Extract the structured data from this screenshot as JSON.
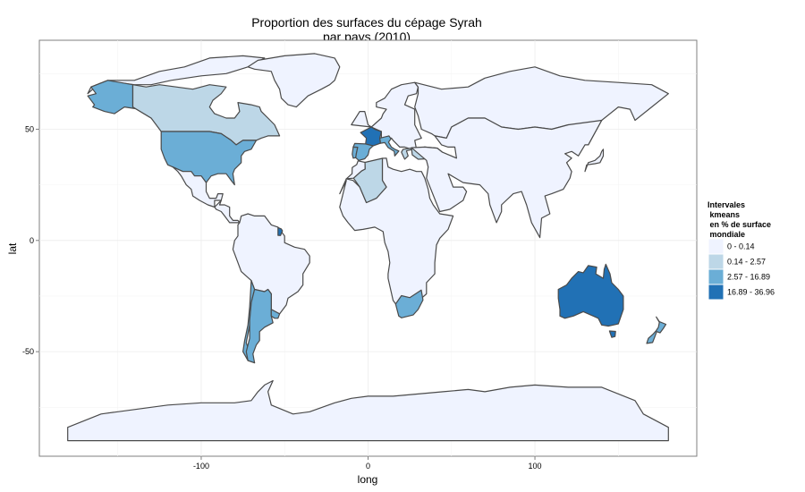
{
  "chart_data": {
    "type": "choropleth-map",
    "title_line1": "Proportion des surfaces du cépage Syrah",
    "title_line2": "par pays (2010)",
    "xlabel": "long",
    "ylabel": "lat",
    "xlim": [
      -197,
      197
    ],
    "ylim": [
      -97,
      90
    ],
    "x_ticks": [
      -100,
      0,
      100
    ],
    "x_tick_labels": [
      "-100",
      "0",
      "100"
    ],
    "y_ticks": [
      50,
      0,
      -50
    ],
    "y_tick_labels": [
      "50",
      "0",
      "-50"
    ],
    "grid": true,
    "legend": {
      "position": "right",
      "title_lines": [
        "Intervales",
        " kmeans",
        " en % de surface",
        " mondiale"
      ],
      "classes": [
        {
          "label": "0 - 0.14",
          "color": "#eff3ff"
        },
        {
          "label": "0.14 - 2.57",
          "color": "#bdd7e7"
        },
        {
          "label": "2.57 - 16.89",
          "color": "#6baed6"
        },
        {
          "label": "16.89 - 36.96",
          "color": "#2171b5"
        }
      ]
    },
    "countries": [
      {
        "name": "North America (other)",
        "class": 0
      },
      {
        "name": "Greenland",
        "class": 0
      },
      {
        "name": "Alaska (USA)",
        "class": 2
      },
      {
        "name": "Canada",
        "class": 1
      },
      {
        "name": "United States",
        "class": 2
      },
      {
        "name": "Mexico",
        "class": 0
      },
      {
        "name": "Central America",
        "class": 0
      },
      {
        "name": "South America (other)",
        "class": 0
      },
      {
        "name": "Chile",
        "class": 2
      },
      {
        "name": "Argentina",
        "class": 2
      },
      {
        "name": "Uruguay",
        "class": 2
      },
      {
        "name": "French Guiana",
        "class": 3
      },
      {
        "name": "Europe (other)",
        "class": 0
      },
      {
        "name": "France",
        "class": 3
      },
      {
        "name": "Portugal",
        "class": 2
      },
      {
        "name": "Spain",
        "class": 2
      },
      {
        "name": "Italy",
        "class": 2
      },
      {
        "name": "Greece",
        "class": 1
      },
      {
        "name": "Turkey",
        "class": 1
      },
      {
        "name": "Russia",
        "class": 0
      },
      {
        "name": "Africa (other)",
        "class": 0
      },
      {
        "name": "Morocco",
        "class": 0
      },
      {
        "name": "Algeria",
        "class": 1
      },
      {
        "name": "South Africa",
        "class": 2
      },
      {
        "name": "Asia (other)",
        "class": 0
      },
      {
        "name": "Japan",
        "class": 0
      },
      {
        "name": "Australia",
        "class": 3
      },
      {
        "name": "Tasmania (Australia)",
        "class": 3
      },
      {
        "name": "New Zealand",
        "class": 2
      },
      {
        "name": "Antarctica",
        "class": 0
      }
    ]
  }
}
